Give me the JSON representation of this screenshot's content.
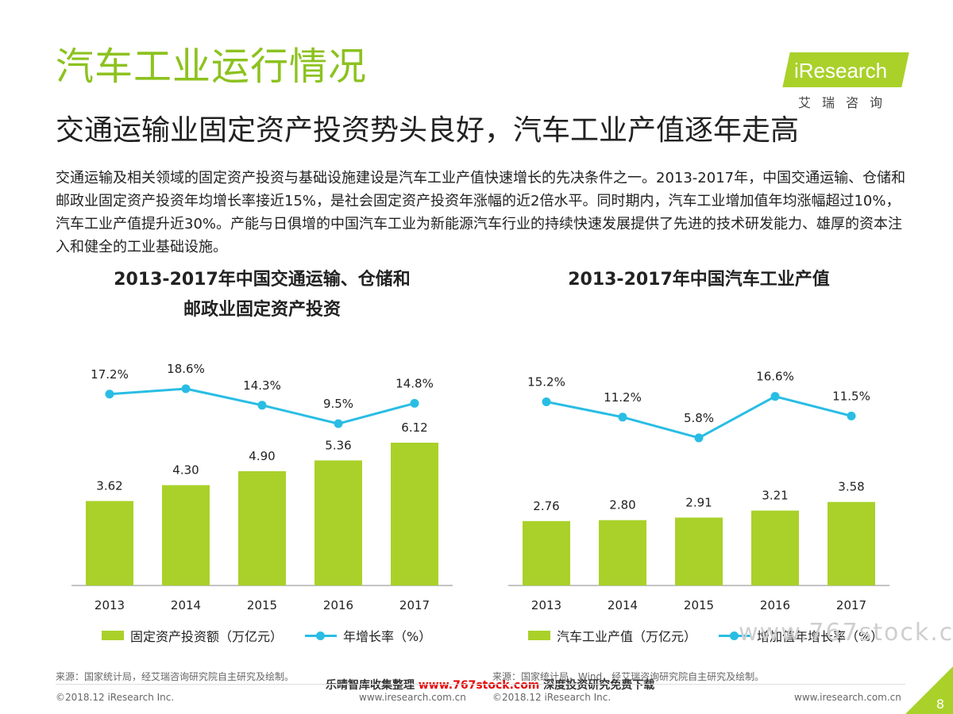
{
  "header": {
    "title": "汽车工业运行情况",
    "subtitle": "交通运输业固定资产投资势头良好，汽车工业产值逐年走高",
    "description": "交通运输及相关领域的固定资产投资与基础设施建设是汽车工业产值快速增长的先决条件之一。2013-2017年，中国交通运输、仓储和邮政业固定资产投资年均增长率接近15%，是社会固定资产投资年涨幅的近2倍水平。同时期内，汽车工业增加值年均涨幅超过10%，汽车工业产值提升近30%。产能与日俱增的中国汽车工业为新能源汽车行业的持续快速发展提供了先进的技术研发能力、雄厚的资本注入和健全的工业基础设施。"
  },
  "logo": {
    "text": "iResearch",
    "cn": "艾瑞咨询"
  },
  "colors": {
    "accent": "#8cc21f",
    "bar": "#a9d12a",
    "line": "#29bde4"
  },
  "chart_data": [
    {
      "type": "bar",
      "title_line1": "2013-2017年中国交通运输、仓储和",
      "title_line2": "邮政业固定资产投资",
      "categories": [
        "2013",
        "2014",
        "2015",
        "2016",
        "2017"
      ],
      "series": [
        {
          "name": "固定资产投资额（万亿元）",
          "kind": "bar",
          "values": [
            3.62,
            4.3,
            4.9,
            5.36,
            6.12
          ],
          "labels": [
            "3.62",
            "4.30",
            "4.90",
            "5.36",
            "6.12"
          ]
        },
        {
          "name": "年增长率（%）",
          "kind": "line",
          "values": [
            17.2,
            18.6,
            14.3,
            9.5,
            14.8
          ],
          "labels": [
            "17.2%",
            "18.6%",
            "14.3%",
            "9.5%",
            "14.8%"
          ]
        }
      ],
      "source": "来源：国家统计局，经艾瑞咨询研究院自主研究及绘制。"
    },
    {
      "type": "bar",
      "title_line1": "2013-2017年中国汽车工业产值",
      "categories": [
        "2013",
        "2014",
        "2015",
        "2016",
        "2017"
      ],
      "series": [
        {
          "name": "汽车工业产值（万亿元）",
          "kind": "bar",
          "values": [
            2.76,
            2.8,
            2.91,
            3.21,
            3.58
          ],
          "labels": [
            "2.76",
            "2.80",
            "2.91",
            "3.21",
            "3.58"
          ]
        },
        {
          "name": "增加值年增长率（%）",
          "kind": "line",
          "values": [
            15.2,
            11.2,
            5.8,
            16.6,
            11.5
          ],
          "labels": [
            "15.2%",
            "11.2%",
            "5.8%",
            "16.6%",
            "11.5%"
          ]
        }
      ],
      "source": "来源：国家统计局，Wind，经艾瑞咨询研究院自主研究及绘制。"
    }
  ],
  "footer": {
    "copyright_left": "©2018.12 iResearch Inc.",
    "url_left": "www.iresearch.com.cn",
    "copyright_mid": "©2018.12 iResearch Inc.",
    "url_right": "www.iresearch.com.cn",
    "page": "8"
  },
  "watermark": {
    "part1": "乐晴智库收集整理 ",
    "part2": "www.767stock.com",
    "part3": " 深度投资研究免费下载",
    "url": "www.767stock.com"
  }
}
